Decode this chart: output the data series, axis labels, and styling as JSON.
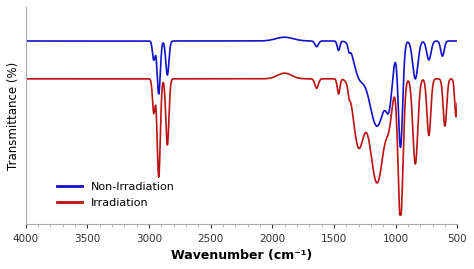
{
  "xlim": [
    4000,
    500
  ],
  "xticks": [
    4000,
    3500,
    3000,
    2500,
    2000,
    1500,
    1000,
    500
  ],
  "xlabel": "Wavenumber (cm⁻¹)",
  "ylabel": "Transmittance (%)",
  "legend": [
    "Non-Irradiation",
    "Irradiation"
  ],
  "blue_color": "#1111CC",
  "red_color": "#BB1111",
  "background": "#ffffff",
  "linewidth": 1.2,
  "blue_baseline": 92,
  "red_baseline": 72
}
